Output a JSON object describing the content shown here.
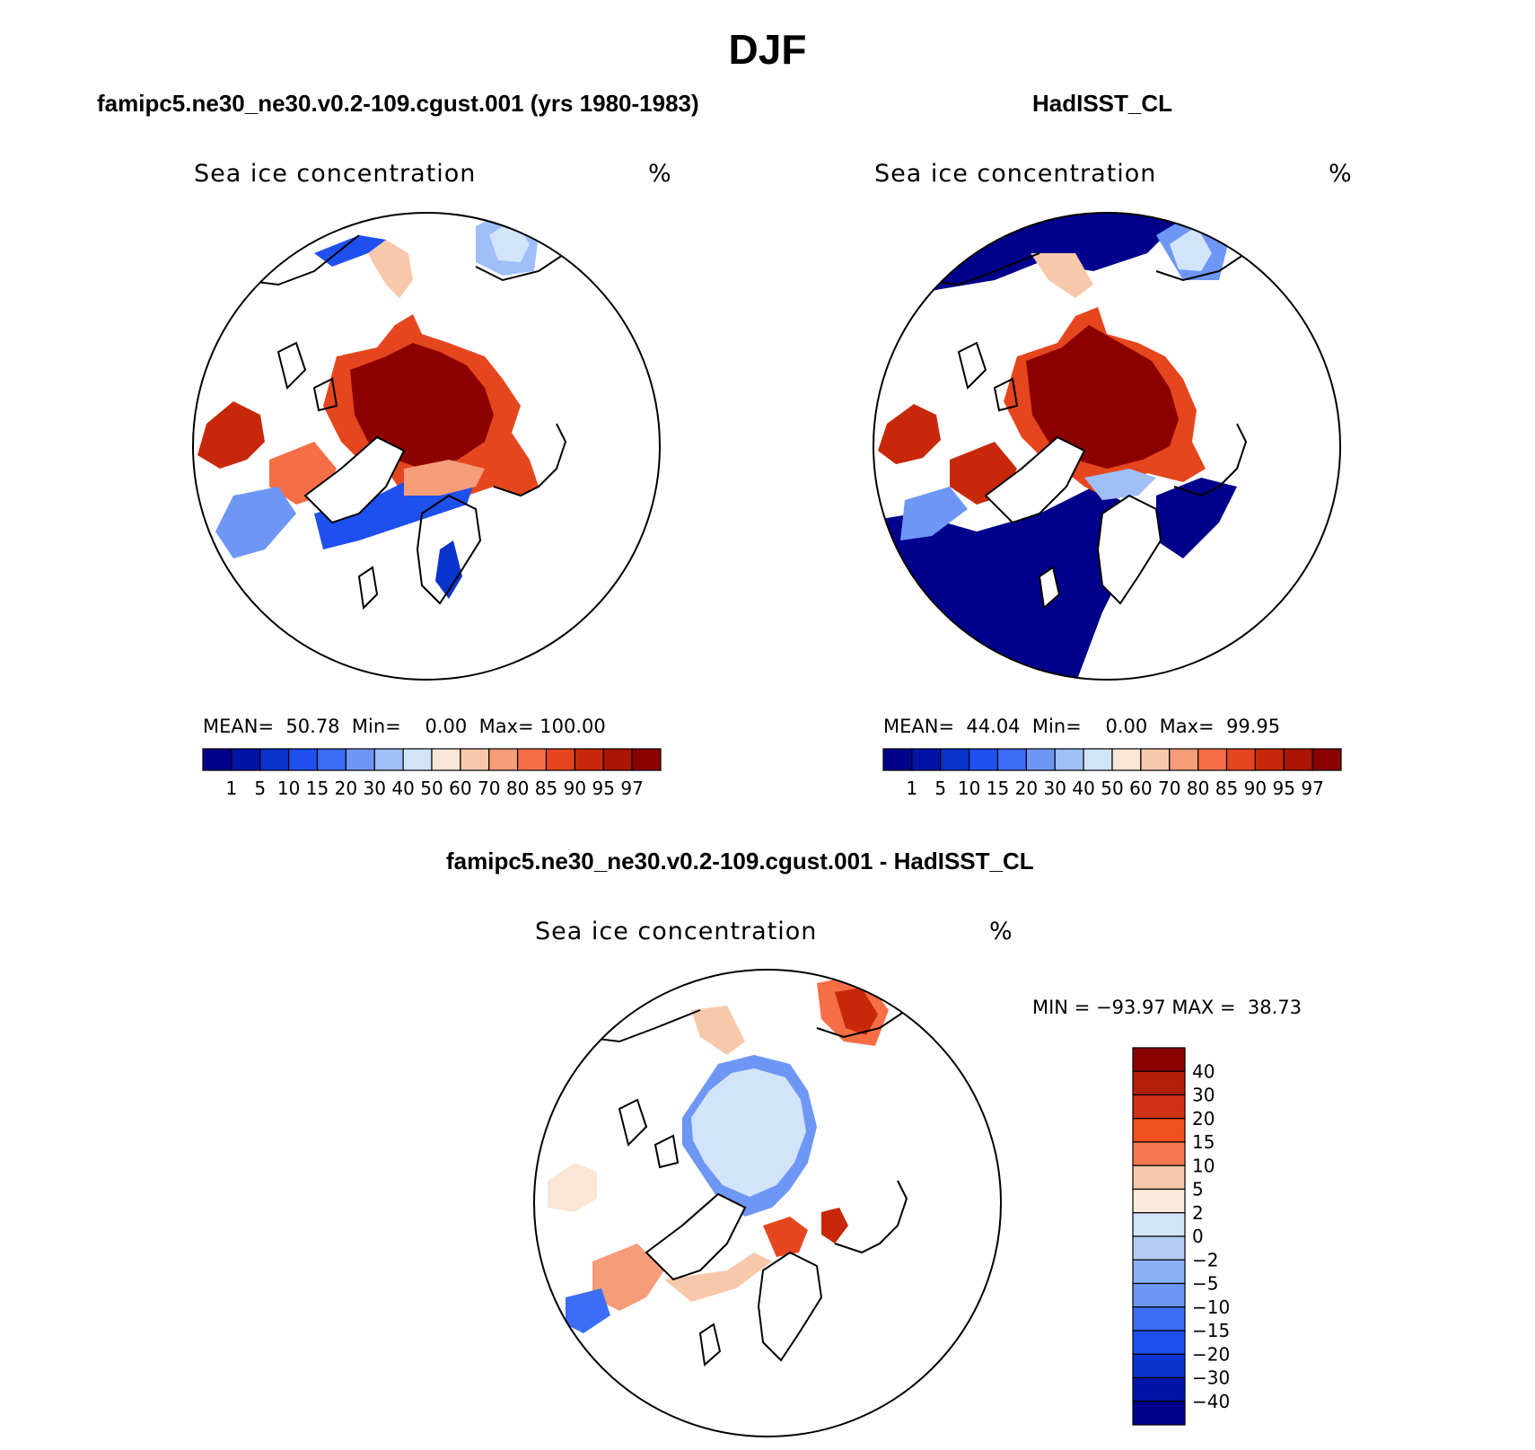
{
  "title": "DJF",
  "panels": [
    {
      "case_title": "famipc5.ne30_ne30.v0.2-109.cgust.001 (yrs 1980-1983)",
      "variable": "Sea ice concentration",
      "units": "%",
      "stats": {
        "mean_label": "MEAN=",
        "mean": "50.78",
        "min_label": "Min=",
        "min": "0.00",
        "max_label": "Max=",
        "max": "100.00"
      }
    },
    {
      "case_title": "HadISST_CL",
      "variable": "Sea ice concentration",
      "units": "%",
      "stats": {
        "mean_label": "MEAN=",
        "mean": "44.04",
        "min_label": "Min=",
        "min": "0.00",
        "max_label": "Max=",
        "max": "99.95"
      }
    },
    {
      "case_title": "famipc5.ne30_ne30.v0.2-109.cgust.001 - HadISST_CL",
      "variable": "Sea ice concentration",
      "units": "%",
      "stats": {
        "min_label": "MIN =",
        "min": "−93.97",
        "max_label": "MAX =",
        "max": "38.73"
      }
    }
  ],
  "colorbars": {
    "absolute": {
      "labels": [
        "1",
        "5",
        "10",
        "15",
        "20",
        "30",
        "40",
        "50",
        "60",
        "70",
        "80",
        "85",
        "90",
        "95",
        "97"
      ],
      "colors": [
        "#00008c",
        "#0014a8",
        "#0a32cc",
        "#1e50f0",
        "#3c6ef5",
        "#6e96f5",
        "#a0bef8",
        "#d2e4fa",
        "#fae6d6",
        "#f8c8aa",
        "#f59c78",
        "#f56e46",
        "#e6461e",
        "#c8280a",
        "#aa1404",
        "#8c0000"
      ]
    },
    "difference": {
      "labels": [
        "40",
        "30",
        "20",
        "15",
        "10",
        "5",
        "2",
        "0",
        "−2",
        "−5",
        "−10",
        "−15",
        "−20",
        "−30",
        "−40"
      ],
      "colors": [
        "#8c0000",
        "#b41e0a",
        "#d23214",
        "#f0501e",
        "#f57850",
        "#f8c8aa",
        "#faeadc",
        "#d2e4fa",
        "#b4ccf5",
        "#8cb0f5",
        "#6e96f5",
        "#3c6ef5",
        "#1e50f0",
        "#0a32cc",
        "#0014a8",
        "#00008c"
      ]
    }
  },
  "chart_data": [
    {
      "type": "heatmap",
      "title": "famipc5.ne30_ne30.v0.2-109.cgust.001 (yrs 1980-1983)",
      "subtitle": "Sea ice concentration",
      "units": "%",
      "projection": "north polar stereographic",
      "mean": 50.78,
      "min": 0.0,
      "max": 100.0,
      "contour_levels": [
        1,
        5,
        10,
        15,
        20,
        30,
        40,
        50,
        60,
        70,
        80,
        85,
        90,
        95,
        97
      ]
    },
    {
      "type": "heatmap",
      "title": "HadISST_CL",
      "subtitle": "Sea ice concentration",
      "units": "%",
      "projection": "north polar stereographic",
      "mean": 44.04,
      "min": 0.0,
      "max": 99.95,
      "contour_levels": [
        1,
        5,
        10,
        15,
        20,
        30,
        40,
        50,
        60,
        70,
        80,
        85,
        90,
        95,
        97
      ]
    },
    {
      "type": "heatmap",
      "title": "famipc5.ne30_ne30.v0.2-109.cgust.001 - HadISST_CL",
      "subtitle": "Sea ice concentration",
      "units": "%",
      "projection": "north polar stereographic",
      "min": -93.97,
      "max": 38.73,
      "contour_levels": [
        40,
        30,
        20,
        15,
        10,
        5,
        2,
        0,
        -2,
        -5,
        -10,
        -15,
        -20,
        -30,
        -40
      ]
    }
  ]
}
